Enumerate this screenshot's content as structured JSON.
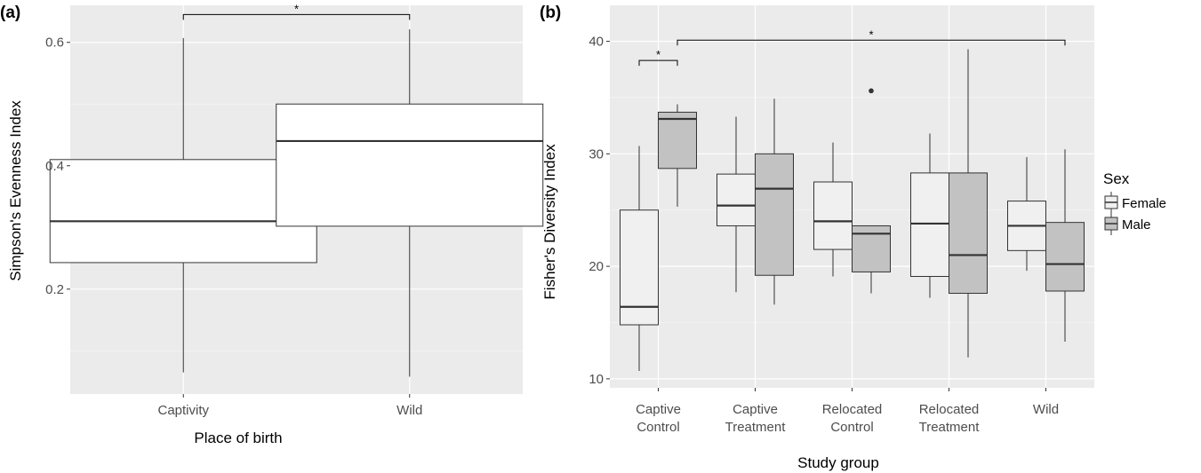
{
  "chart_data": [
    {
      "panel": "(a)",
      "type": "box",
      "xlabel": "Place of birth",
      "ylabel": "Simpson's Evenness Index",
      "ylim": [
        0.03,
        0.66
      ],
      "yticks": [
        0.2,
        0.4,
        0.6
      ],
      "ytick_labels": [
        "0.2",
        "0.4",
        "0.6"
      ],
      "grid": true,
      "categories": [
        "Captivity",
        "Wild"
      ],
      "boxes": [
        {
          "category": "Captivity",
          "min": 0.065,
          "q1": 0.243,
          "median": 0.31,
          "q3": 0.41,
          "max": 0.607
        },
        {
          "category": "Wild",
          "min": 0.058,
          "q1": 0.302,
          "median": 0.44,
          "q3": 0.5,
          "max": 0.621
        }
      ],
      "significance": [
        {
          "from": "Captivity",
          "to": "Wild",
          "label": "*",
          "y": 0.645
        }
      ]
    },
    {
      "panel": "(b)",
      "type": "box",
      "xlabel": "Study group",
      "ylabel": "Fisher's Diversity Index",
      "ylim": [
        9.2,
        43.2
      ],
      "yticks": [
        10,
        20,
        30,
        40
      ],
      "ytick_labels": [
        "10",
        "20",
        "30",
        "40"
      ],
      "grid": true,
      "categories": [
        {
          "line1": "Captive",
          "line2": "Control"
        },
        {
          "line1": "Captive",
          "line2": "Treatment"
        },
        {
          "line1": "Relocated",
          "line2": "Control"
        },
        {
          "line1": "Relocated",
          "line2": "Treatment"
        },
        {
          "line1": "Wild",
          "line2": ""
        }
      ],
      "legend": {
        "title": "Sex",
        "position": "right",
        "entries": [
          {
            "name": "Female",
            "color": "#f0f0f0"
          },
          {
            "name": "Male",
            "color": "#c2c2c2"
          }
        ]
      },
      "series": [
        {
          "name": "Female",
          "color": "#f0f0f0",
          "boxes": [
            {
              "min": 10.7,
              "q1": 14.8,
              "median": 16.4,
              "q3": 25.0,
              "max": 30.7
            },
            {
              "min": 17.7,
              "q1": 23.6,
              "median": 25.4,
              "q3": 28.2,
              "max": 33.3
            },
            {
              "min": 19.1,
              "q1": 21.5,
              "median": 24.0,
              "q3": 27.5,
              "max": 31.0
            },
            {
              "min": 17.2,
              "q1": 19.1,
              "median": 23.8,
              "q3": 28.3,
              "max": 31.8
            },
            {
              "min": 19.6,
              "q1": 21.4,
              "median": 23.6,
              "q3": 25.8,
              "max": 29.7
            }
          ]
        },
        {
          "name": "Male",
          "color": "#c2c2c2",
          "boxes": [
            {
              "min": 25.3,
              "q1": 28.7,
              "median": 33.1,
              "q3": 33.7,
              "max": 34.4
            },
            {
              "min": 16.6,
              "q1": 19.2,
              "median": 26.9,
              "q3": 30.0,
              "max": 34.9
            },
            {
              "min": 17.6,
              "q1": 19.5,
              "median": 22.9,
              "q3": 23.6,
              "max": 23.6,
              "outliers": [
                35.6
              ]
            },
            {
              "min": 11.9,
              "q1": 17.6,
              "median": 21.0,
              "q3": 28.3,
              "max": 39.3
            },
            {
              "min": 13.3,
              "q1": 17.8,
              "median": 20.2,
              "q3": 23.9,
              "max": 30.4
            }
          ]
        }
      ],
      "significance": [
        {
          "from": "Captive Control Female",
          "to": "Captive Control Male",
          "label": "*",
          "y": 38.3
        },
        {
          "from": "Captive Control Male",
          "to": "Wild Male",
          "label": "*",
          "y": 40.1
        }
      ]
    }
  ]
}
